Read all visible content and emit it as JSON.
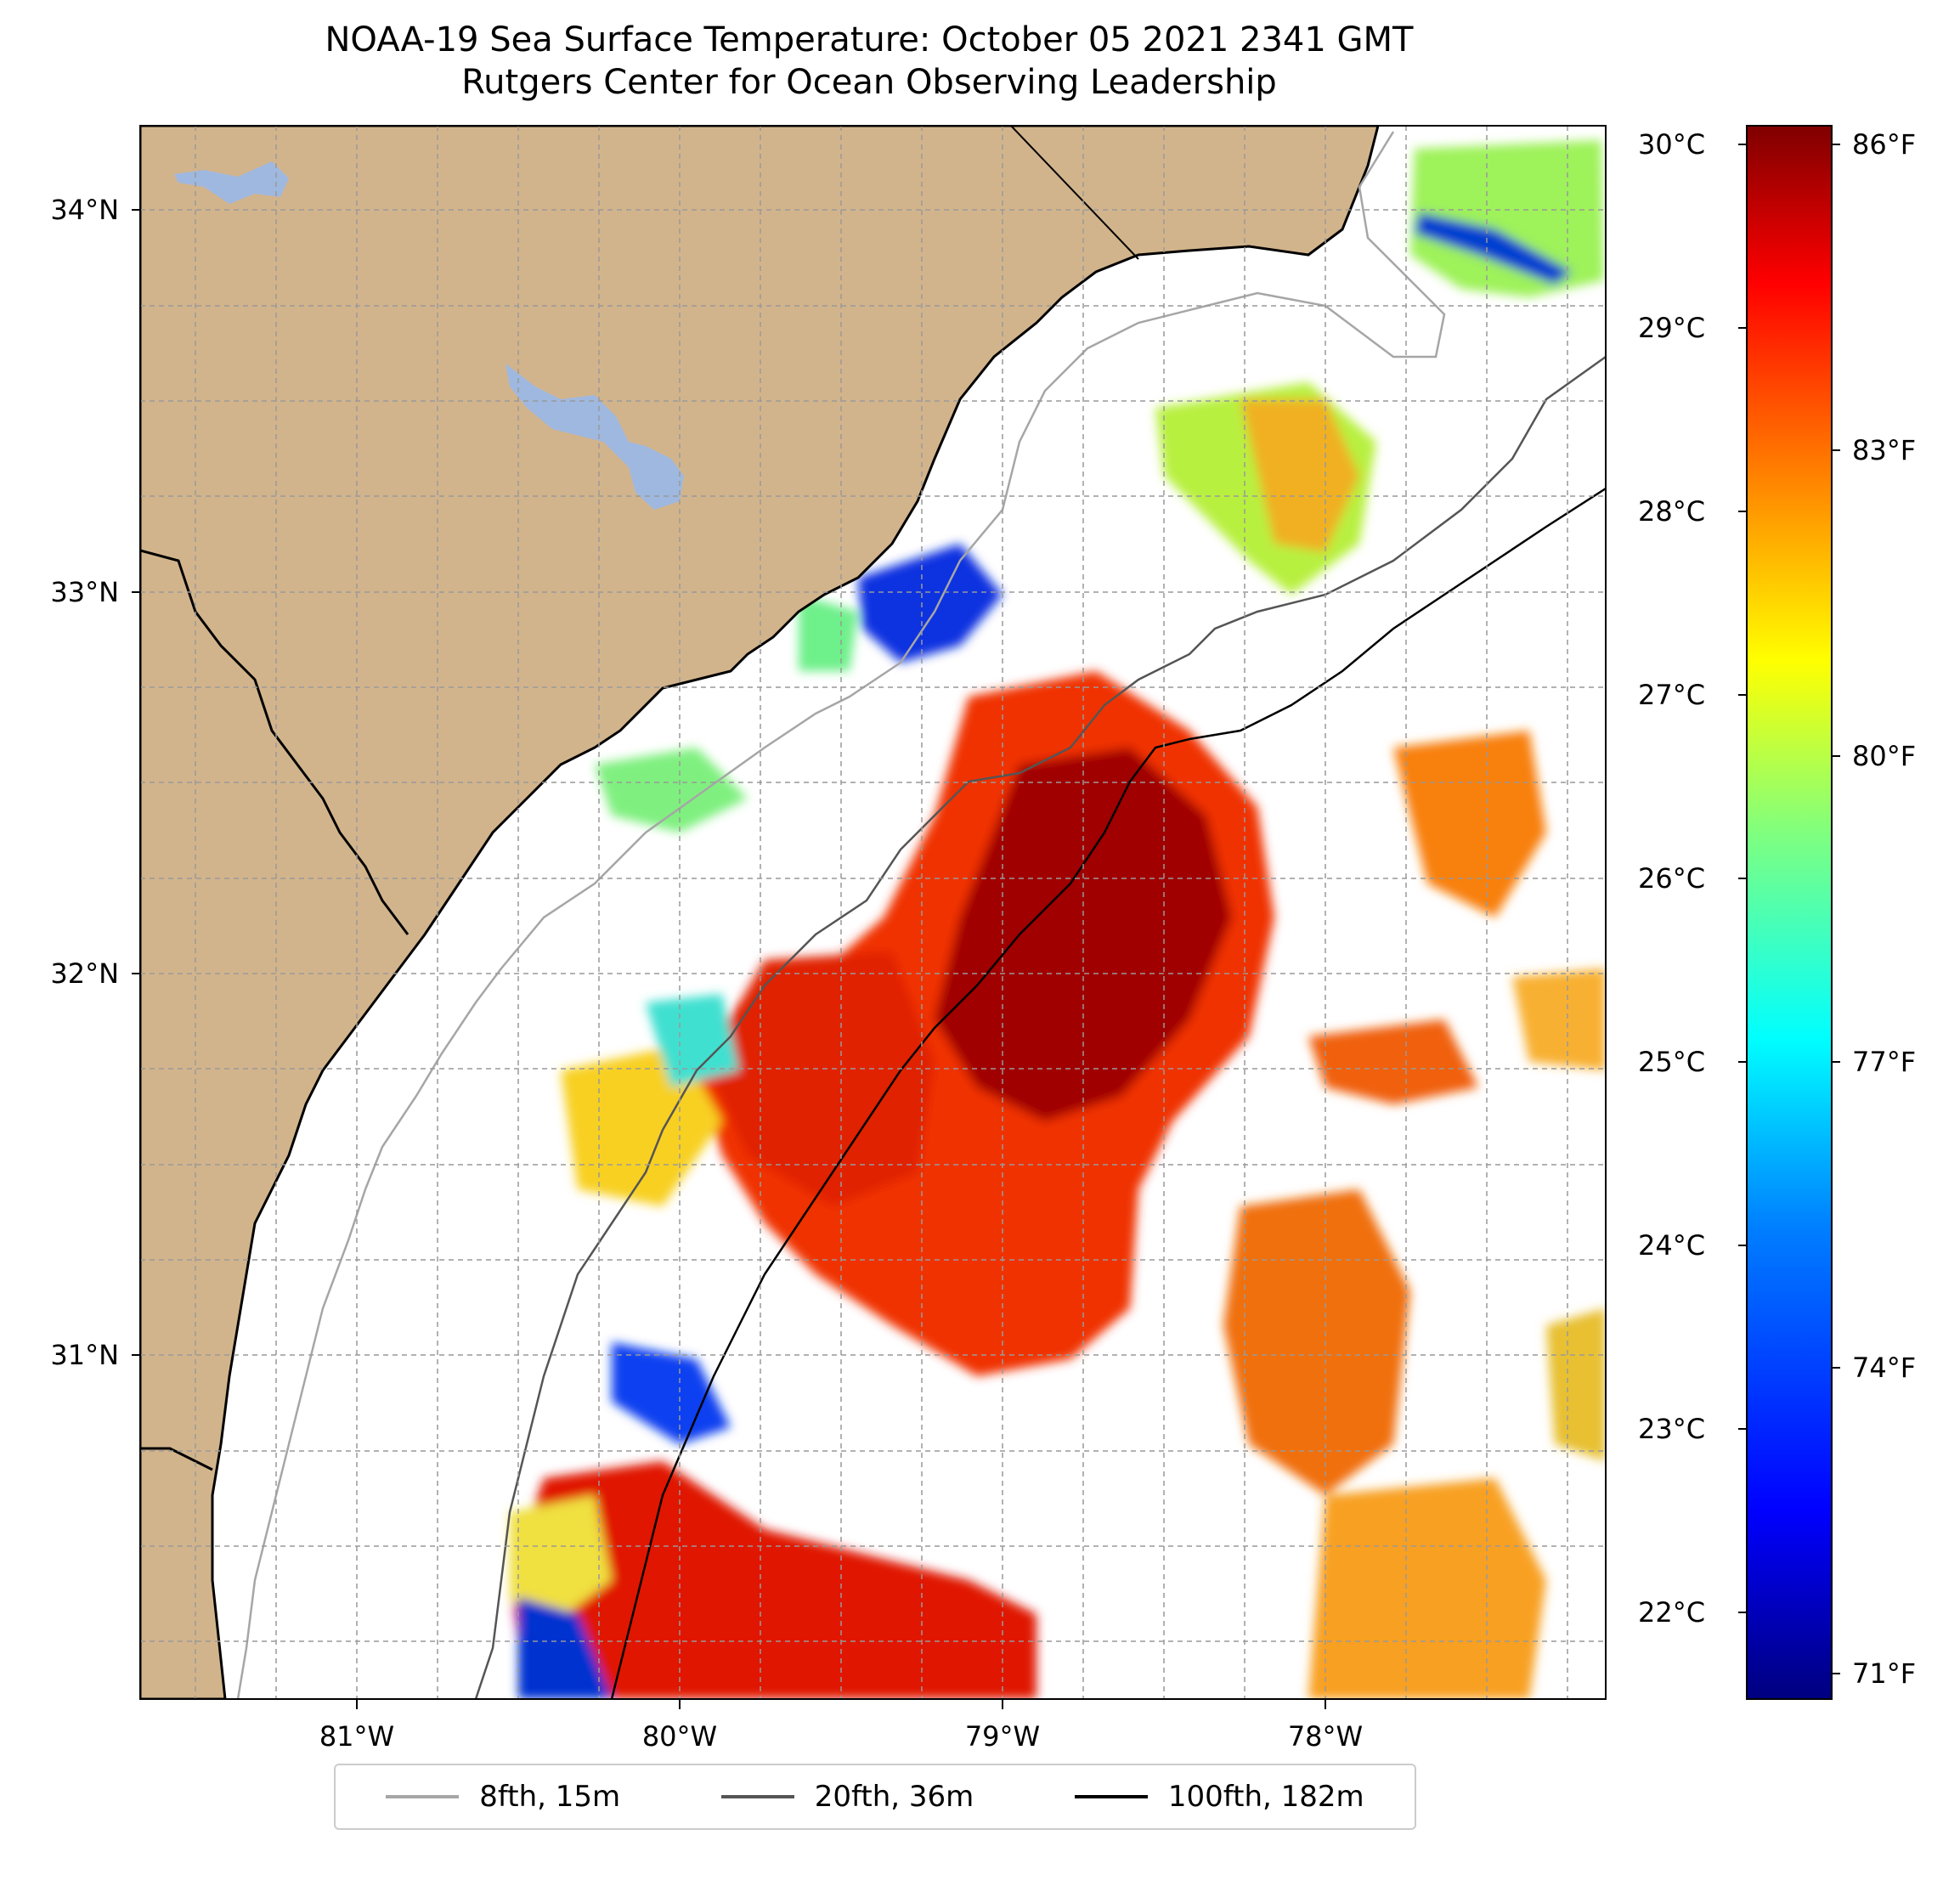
{
  "title": {
    "line1": "NOAA-19 Sea Surface Temperature: October 05 2021 2341 GMT",
    "line2": "Rutgers Center for Ocean Observing Leadership"
  },
  "axes": {
    "lat_ticks": [
      "34°N",
      "33°N",
      "32°N",
      "31°N"
    ],
    "lon_ticks": [
      "81°W",
      "80°W",
      "79°W",
      "78°W"
    ]
  },
  "colorbar": {
    "celsius_ticks": [
      "30°C",
      "29°C",
      "28°C",
      "27°C",
      "26°C",
      "25°C",
      "24°C",
      "23°C",
      "22°C"
    ],
    "fahrenheit_ticks": [
      "86°F",
      "83°F",
      "80°F",
      "77°F",
      "74°F",
      "71°F"
    ],
    "colormap": [
      "#00007f",
      "#0000ff",
      "#007fff",
      "#00ffff",
      "#7fff7f",
      "#ffff00",
      "#ff7f00",
      "#ff0000",
      "#7f0000"
    ]
  },
  "legend": {
    "items": [
      {
        "label": "8fth, 15m",
        "color": "#a6a6a6"
      },
      {
        "label": "20fth, 36m",
        "color": "#555555"
      },
      {
        "label": "100fth, 182m",
        "color": "#000000"
      }
    ]
  },
  "colors": {
    "land": "#d2b48c",
    "water_body": "#9fb8e0",
    "ocean_no_data": "#ffffff"
  }
}
